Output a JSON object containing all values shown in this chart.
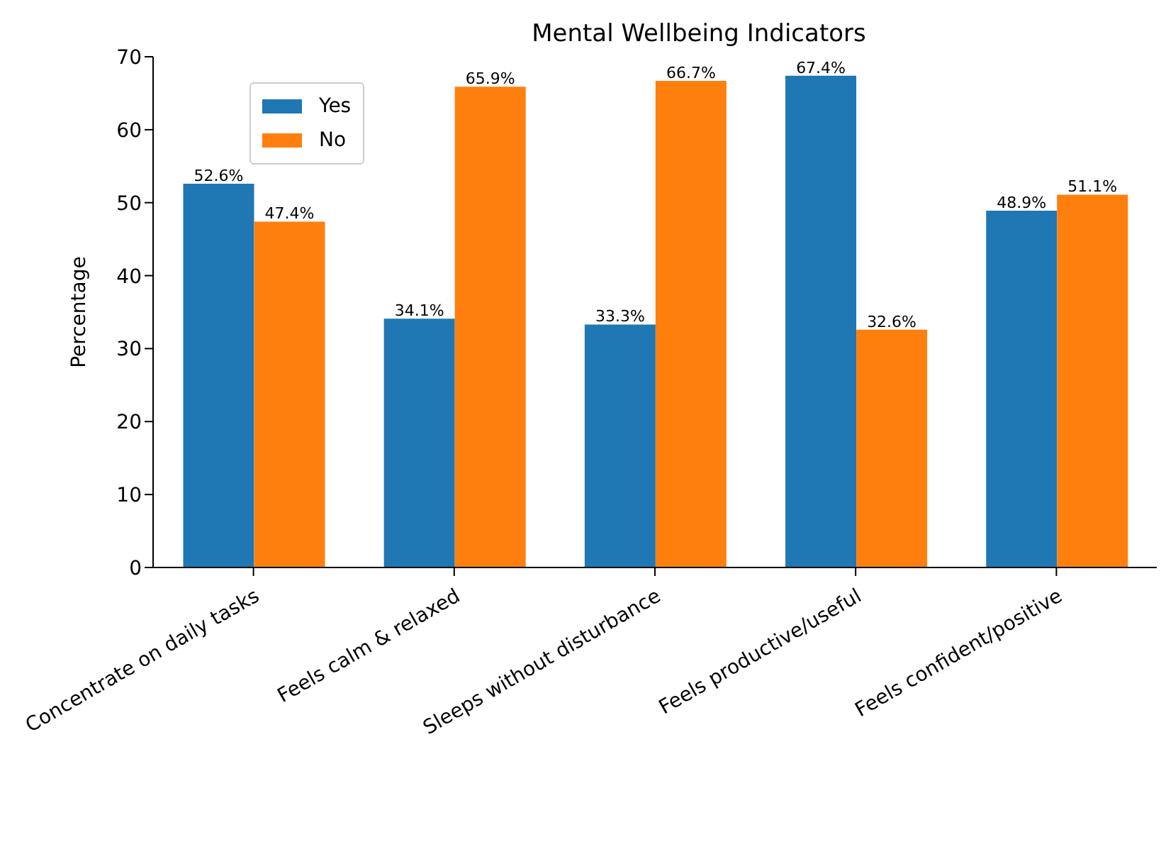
{
  "chart_data": {
    "type": "bar",
    "title": "Mental Wellbeing Indicators",
    "ylabel": "Percentage",
    "categories": [
      "Concentrate on daily tasks",
      "Feels calm & relaxed",
      "Sleeps without disturbance",
      "Feels productive/useful",
      "Feels confident/positive"
    ],
    "series": [
      {
        "name": "Yes",
        "color": "#1f77b4",
        "values": [
          52.6,
          34.1,
          33.3,
          67.4,
          48.9
        ],
        "value_labels": [
          "52.6%",
          "34.1%",
          "33.3%",
          "67.4%",
          "48.9%"
        ]
      },
      {
        "name": "No",
        "color": "#ff7f0e",
        "values": [
          47.4,
          65.9,
          66.7,
          32.6,
          51.1
        ],
        "value_labels": [
          "47.4%",
          "65.9%",
          "66.7%",
          "32.6%",
          "51.1%"
        ]
      }
    ],
    "ylim": [
      0,
      70
    ],
    "yticks": [
      0,
      10,
      20,
      30,
      40,
      50,
      60,
      70
    ],
    "grid": false,
    "legend": "top left"
  }
}
